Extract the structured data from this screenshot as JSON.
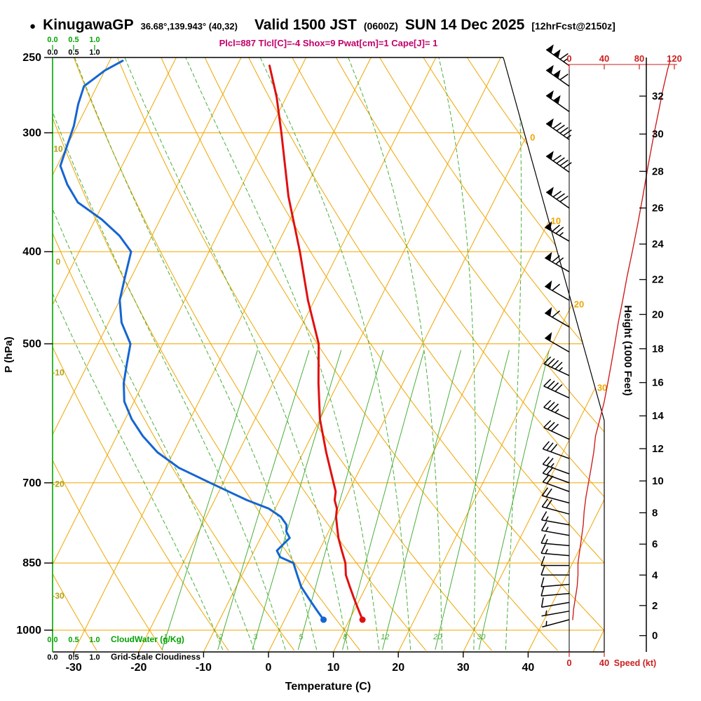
{
  "header": {
    "bullet": "●",
    "station": "KinugawaGP",
    "coords": "36.68°,139.943° (40,32)",
    "valid_main": "Valid 1500 JST",
    "valid_z": "(0600Z)",
    "valid_date": "SUN 14 Dec 2025",
    "forecast": "[12hrFcst@2150z]",
    "indices": "Plcl=887 Tlcl[C]=-4 Shox=9 Pwat[cm]=1 Cape[J]= 1"
  },
  "axes": {
    "pressure_label": "P (hPa)",
    "pressure_ticks": [
      250,
      300,
      400,
      500,
      700,
      850,
      1000
    ],
    "temp_label": "Temperature (C)",
    "temp_ticks": [
      -30,
      -20,
      -10,
      0,
      10,
      20,
      30,
      40
    ],
    "height_label": "Height (1000 Feet)",
    "height_ticks": [
      0,
      2,
      4,
      6,
      8,
      10,
      12,
      14,
      16,
      18,
      20,
      22,
      24,
      26,
      28,
      30,
      32
    ],
    "speed_label": "Speed (kt)",
    "speed_ticks": [
      0,
      40,
      80,
      120
    ],
    "cloud_scale": [
      "0.0",
      "0.5",
      "1.0"
    ],
    "cloudwater_label": "CloudWater (g/Kg)",
    "cloudiness_label": "Grid-Scale Cloudiness"
  },
  "colors": {
    "grid_orange": "#f0a500",
    "green_line": "#4aae3a",
    "bright_green": "#00a300",
    "temperature": "#e01010",
    "dewpoint": "#1565d2",
    "speed_curve": "#cc2020",
    "indices_magenta": "#c2006a",
    "adiabat_label": "#b3a112",
    "black": "#000000"
  },
  "chart_data": {
    "type": "line",
    "chart_kind": "skew-T log-p thermodynamic sounding",
    "title": "KinugawaGP Valid 1500 JST (0600Z) SUN 14 Dec 2025 [12hrFcst@2150z]",
    "pressure_axis": {
      "scale": "log",
      "range_hPa": [
        250,
        1053
      ],
      "ticks": [
        250,
        300,
        400,
        500,
        700,
        850,
        1000
      ]
    },
    "temperature_axis": {
      "unit": "C",
      "ticks": [
        -30,
        -20,
        -10,
        0,
        10,
        20,
        30,
        40
      ],
      "skew_note": "isotherms slope up-right"
    },
    "series": [
      {
        "name": "temperature_C",
        "color": "#e01010",
        "points": [
          [
            975,
            12
          ],
          [
            950,
            10.5
          ],
          [
            925,
            9
          ],
          [
            900,
            7.5
          ],
          [
            875,
            6
          ],
          [
            850,
            5
          ],
          [
            825,
            3.5
          ],
          [
            800,
            2
          ],
          [
            780,
            1
          ],
          [
            760,
            0
          ],
          [
            745,
            -0.5
          ],
          [
            730,
            -1.5
          ],
          [
            715,
            -2
          ],
          [
            700,
            -3
          ],
          [
            650,
            -6.5
          ],
          [
            600,
            -10
          ],
          [
            550,
            -13
          ],
          [
            500,
            -16
          ],
          [
            450,
            -21
          ],
          [
            400,
            -26
          ],
          [
            350,
            -32
          ],
          [
            300,
            -38
          ],
          [
            275,
            -41.5
          ],
          [
            255,
            -45
          ]
        ]
      },
      {
        "name": "dewpoint_C",
        "color": "#1565d2",
        "points": [
          [
            975,
            6
          ],
          [
            950,
            4
          ],
          [
            925,
            2
          ],
          [
            900,
            0
          ],
          [
            875,
            -1.5
          ],
          [
            850,
            -3
          ],
          [
            838,
            -5.5
          ],
          [
            825,
            -6.5
          ],
          [
            812,
            -6
          ],
          [
            800,
            -5.5
          ],
          [
            788,
            -6.5
          ],
          [
            775,
            -7
          ],
          [
            760,
            -8.5
          ],
          [
            745,
            -11
          ],
          [
            730,
            -15
          ],
          [
            715,
            -18.5
          ],
          [
            700,
            -22
          ],
          [
            675,
            -28
          ],
          [
            650,
            -32.5
          ],
          [
            625,
            -36
          ],
          [
            600,
            -39
          ],
          [
            575,
            -41.5
          ],
          [
            550,
            -43
          ],
          [
            525,
            -44
          ],
          [
            500,
            -45
          ],
          [
            475,
            -48
          ],
          [
            450,
            -50
          ],
          [
            425,
            -51
          ],
          [
            400,
            -52
          ],
          [
            385,
            -55
          ],
          [
            370,
            -59
          ],
          [
            355,
            -64
          ],
          [
            340,
            -67
          ],
          [
            325,
            -69.5
          ],
          [
            310,
            -70
          ],
          [
            295,
            -70.5
          ],
          [
            280,
            -71.5
          ],
          [
            268,
            -72
          ],
          [
            258,
            -70
          ],
          [
            252,
            -68
          ]
        ]
      },
      {
        "name": "wind_speed_profile_kt",
        "color": "#cc2020",
        "points": [
          [
            975,
            4
          ],
          [
            950,
            5
          ],
          [
            925,
            7
          ],
          [
            900,
            9
          ],
          [
            875,
            10
          ],
          [
            850,
            10
          ],
          [
            825,
            12
          ],
          [
            800,
            14
          ],
          [
            775,
            16
          ],
          [
            750,
            17
          ],
          [
            725,
            19
          ],
          [
            700,
            22
          ],
          [
            675,
            25
          ],
          [
            650,
            28
          ],
          [
            625,
            30
          ],
          [
            600,
            35
          ],
          [
            575,
            40
          ],
          [
            550,
            44
          ],
          [
            525,
            48
          ],
          [
            500,
            52
          ],
          [
            475,
            56
          ],
          [
            450,
            61
          ],
          [
            425,
            66
          ],
          [
            400,
            72
          ],
          [
            375,
            78
          ],
          [
            350,
            84
          ],
          [
            325,
            90
          ],
          [
            300,
            97
          ],
          [
            285,
            102
          ],
          [
            270,
            107
          ],
          [
            258,
            112
          ],
          [
            252,
            115
          ]
        ]
      }
    ],
    "wind_barbs": [
      [
        975,
        255,
        5
      ],
      [
        955,
        260,
        6
      ],
      [
        935,
        260,
        8
      ],
      [
        915,
        265,
        8
      ],
      [
        895,
        265,
        10
      ],
      [
        875,
        270,
        10
      ],
      [
        855,
        270,
        12
      ],
      [
        835,
        275,
        13
      ],
      [
        815,
        275,
        15
      ],
      [
        795,
        280,
        15
      ],
      [
        775,
        280,
        17
      ],
      [
        755,
        285,
        18
      ],
      [
        735,
        285,
        20
      ],
      [
        715,
        290,
        20
      ],
      [
        700,
        290,
        22
      ],
      [
        685,
        290,
        24
      ],
      [
        660,
        290,
        28
      ],
      [
        630,
        295,
        32
      ],
      [
        600,
        295,
        36
      ],
      [
        570,
        295,
        42
      ],
      [
        540,
        295,
        46
      ],
      [
        510,
        300,
        52
      ],
      [
        480,
        300,
        58
      ],
      [
        450,
        300,
        62
      ],
      [
        420,
        300,
        68
      ],
      [
        390,
        300,
        74
      ],
      [
        360,
        305,
        82
      ],
      [
        330,
        305,
        90
      ],
      [
        305,
        305,
        96
      ],
      [
        285,
        305,
        102
      ],
      [
        268,
        305,
        108
      ],
      [
        255,
        305,
        114
      ]
    ],
    "surface_dots": {
      "pressure_hPa": 975,
      "temperature_C": 12,
      "dewpoint_C": 6
    },
    "grid": {
      "isotherms_C": {
        "min": -80,
        "max": 50,
        "step": 10
      },
      "dry_adiabats_C": {
        "min": -40,
        "max": 120,
        "step": 10
      },
      "dry_adiabats_labeled": [
        10,
        0,
        -10,
        -20,
        -30
      ],
      "moist_adiabats_C": [
        -10,
        -5,
        0,
        5,
        10,
        15,
        20,
        25,
        30,
        35
      ],
      "mixing_ratio_g_kg": [
        1,
        2,
        3,
        5,
        8,
        12,
        20,
        30
      ],
      "isotherm_diagonal_labels": [
        0,
        10,
        20,
        30
      ]
    },
    "height_axis_kft": {
      "ticks": [
        0,
        2,
        4,
        6,
        8,
        10,
        12,
        14,
        16,
        18,
        20,
        22,
        24,
        26,
        28,
        30,
        32
      ]
    },
    "speed_axis_kt": {
      "ticks": [
        0,
        40,
        80,
        120
      ],
      "range": [
        0,
        120
      ]
    }
  }
}
